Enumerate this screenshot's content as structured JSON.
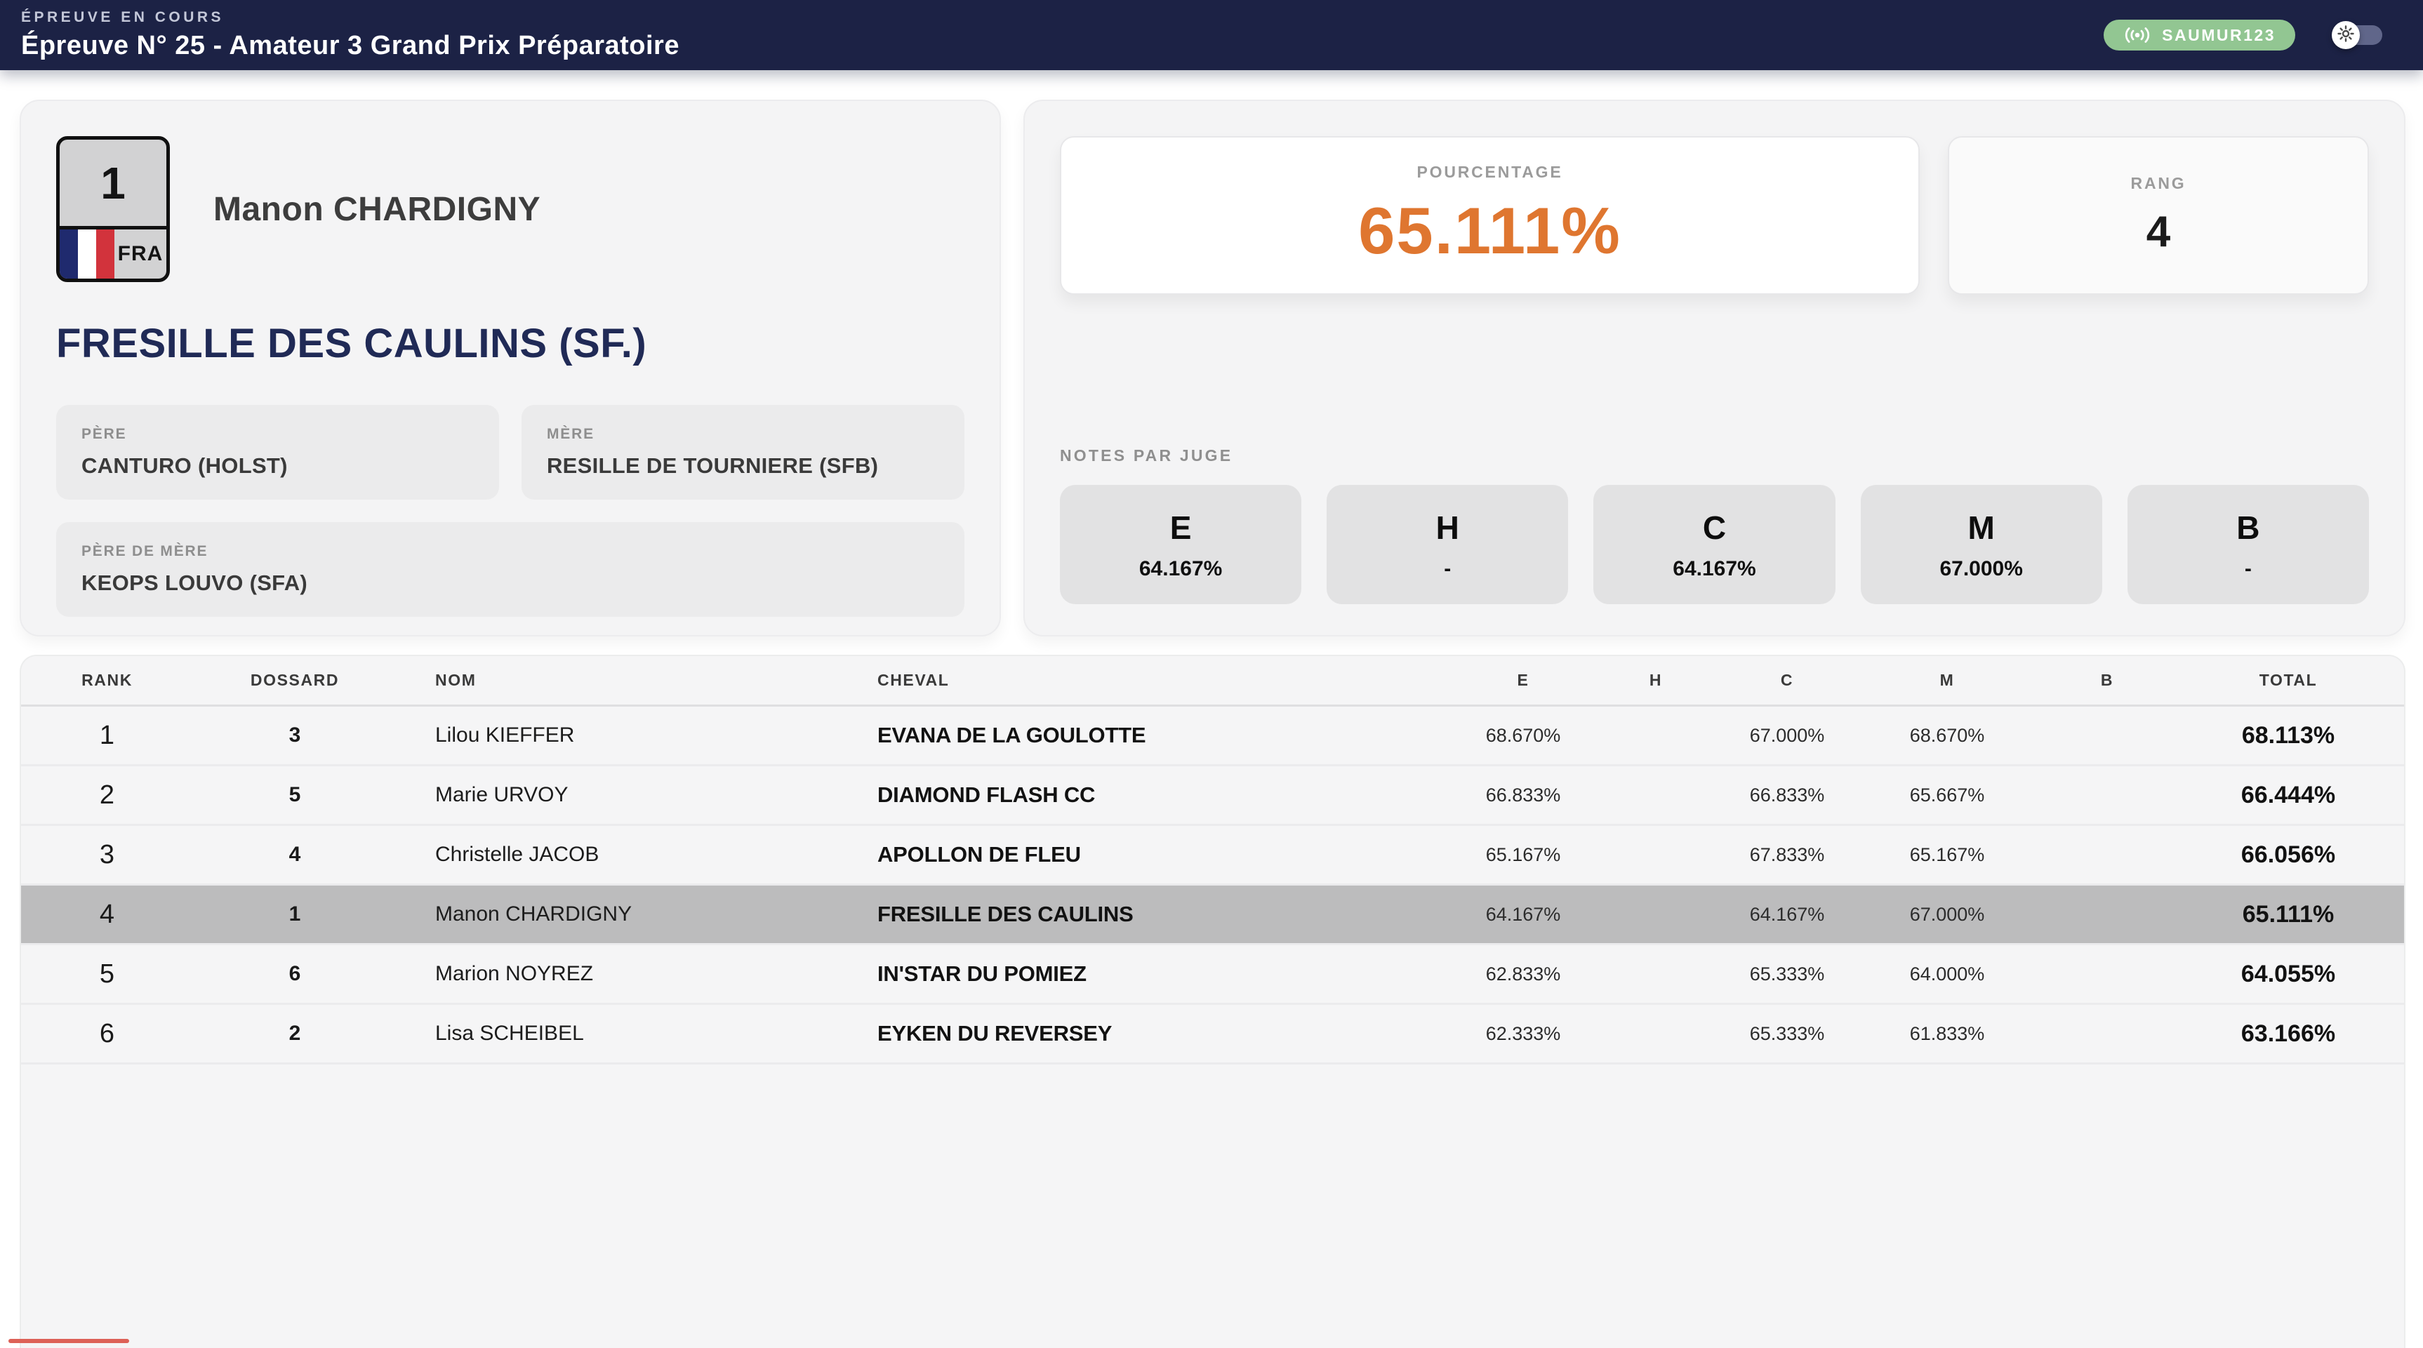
{
  "header": {
    "kicker": "ÉPREUVE EN COURS",
    "title": "Épreuve N° 25 - Amateur 3 Grand Prix Préparatoire",
    "live_badge": {
      "label": "SAUMUR123",
      "icon": "broadcast-icon"
    },
    "theme_toggle": {
      "icon": "sun-icon",
      "state": "off"
    }
  },
  "rider_card": {
    "bib_number": "1",
    "country_code": "FRA",
    "flag_icon": "france-flag-icon",
    "rider_name": "Manon CHARDIGNY",
    "horse_name": "FRESILLE DES CAULINS (SF.)",
    "pedigree": [
      {
        "label": "PÈRE",
        "value": "CANTURO (HOLST)"
      },
      {
        "label": "MÈRE",
        "value": "RESILLE DE TOURNIERE (SFB)"
      },
      {
        "label": "PÈRE DE MÈRE",
        "value": "KEOPS LOUVO (SFA)"
      }
    ]
  },
  "score_card": {
    "percentage_label": "POURCENTAGE",
    "percentage_value": "65.111%",
    "rank_label": "RANG",
    "rank_value": "4",
    "judges_label": "NOTES PAR JUGE",
    "judges": [
      {
        "position": "E",
        "score": "64.167%"
      },
      {
        "position": "H",
        "score": "-"
      },
      {
        "position": "C",
        "score": "64.167%"
      },
      {
        "position": "M",
        "score": "67.000%"
      },
      {
        "position": "B",
        "score": "-"
      }
    ]
  },
  "results_table": {
    "columns": [
      "RANK",
      "DOSSARD",
      "NOM",
      "CHEVAL",
      "E",
      "H",
      "C",
      "M",
      "B",
      "TOTAL"
    ],
    "rows": [
      {
        "rank": "1",
        "dossard": "3",
        "nom": "Lilou KIEFFER",
        "cheval": "EVANA DE LA GOULOTTE",
        "e": "68.670%",
        "h": "",
        "c": "67.000%",
        "m": "68.670%",
        "b": "",
        "total": "68.113%",
        "highlight": false
      },
      {
        "rank": "2",
        "dossard": "5",
        "nom": "Marie URVOY",
        "cheval": "DIAMOND FLASH CC",
        "e": "66.833%",
        "h": "",
        "c": "66.833%",
        "m": "65.667%",
        "b": "",
        "total": "66.444%",
        "highlight": false
      },
      {
        "rank": "3",
        "dossard": "4",
        "nom": "Christelle JACOB",
        "cheval": "APOLLON DE FLEU",
        "e": "65.167%",
        "h": "",
        "c": "67.833%",
        "m": "65.167%",
        "b": "",
        "total": "66.056%",
        "highlight": false
      },
      {
        "rank": "4",
        "dossard": "1",
        "nom": "Manon CHARDIGNY",
        "cheval": "FRESILLE DES CAULINS",
        "e": "64.167%",
        "h": "",
        "c": "64.167%",
        "m": "67.000%",
        "b": "",
        "total": "65.111%",
        "highlight": true
      },
      {
        "rank": "5",
        "dossard": "6",
        "nom": "Marion NOYREZ",
        "cheval": "IN'STAR DU POMIEZ",
        "e": "62.833%",
        "h": "",
        "c": "65.333%",
        "m": "64.000%",
        "b": "",
        "total": "64.055%",
        "highlight": false
      },
      {
        "rank": "6",
        "dossard": "2",
        "nom": "Lisa SCHEIBEL",
        "cheval": "EYKEN DU REVERSEY",
        "e": "62.333%",
        "h": "",
        "c": "65.333%",
        "m": "61.833%",
        "b": "",
        "total": "63.166%",
        "highlight": false
      }
    ]
  },
  "colors": {
    "header_navy": "#1c2245",
    "accent_orange": "#df7630",
    "badge_green": "#92c692",
    "horse_navy": "#202a56",
    "highlight_gray": "#bcbcbd",
    "progress_red": "#dd6157"
  }
}
